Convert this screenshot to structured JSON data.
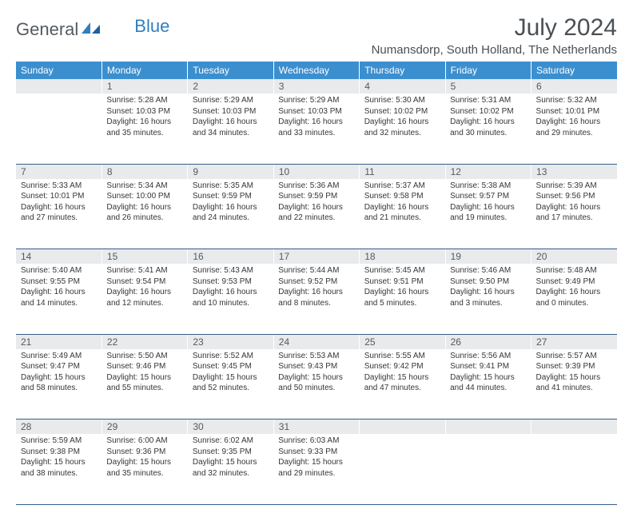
{
  "logo": {
    "general": "General",
    "blue": "Blue"
  },
  "title": "July 2024",
  "location": "Numansdorp, South Holland, The Netherlands",
  "colors": {
    "header_bg": "#3c8fcf",
    "header_fg": "#ffffff",
    "daynum_bg": "#e9eaec",
    "border": "#355e88",
    "title_color": "#4a4f54",
    "body_text": "#363636",
    "logo_gray": "#555a5f",
    "logo_blue": "#2f7fbf"
  },
  "day_headers": [
    "Sunday",
    "Monday",
    "Tuesday",
    "Wednesday",
    "Thursday",
    "Friday",
    "Saturday"
  ],
  "weeks": [
    {
      "nums": [
        "",
        "1",
        "2",
        "3",
        "4",
        "5",
        "6"
      ],
      "cells": [
        {
          "sunrise": "",
          "sunset": "",
          "daylight1": "",
          "daylight2": ""
        },
        {
          "sunrise": "Sunrise: 5:28 AM",
          "sunset": "Sunset: 10:03 PM",
          "daylight1": "Daylight: 16 hours",
          "daylight2": "and 35 minutes."
        },
        {
          "sunrise": "Sunrise: 5:29 AM",
          "sunset": "Sunset: 10:03 PM",
          "daylight1": "Daylight: 16 hours",
          "daylight2": "and 34 minutes."
        },
        {
          "sunrise": "Sunrise: 5:29 AM",
          "sunset": "Sunset: 10:03 PM",
          "daylight1": "Daylight: 16 hours",
          "daylight2": "and 33 minutes."
        },
        {
          "sunrise": "Sunrise: 5:30 AM",
          "sunset": "Sunset: 10:02 PM",
          "daylight1": "Daylight: 16 hours",
          "daylight2": "and 32 minutes."
        },
        {
          "sunrise": "Sunrise: 5:31 AM",
          "sunset": "Sunset: 10:02 PM",
          "daylight1": "Daylight: 16 hours",
          "daylight2": "and 30 minutes."
        },
        {
          "sunrise": "Sunrise: 5:32 AM",
          "sunset": "Sunset: 10:01 PM",
          "daylight1": "Daylight: 16 hours",
          "daylight2": "and 29 minutes."
        }
      ]
    },
    {
      "nums": [
        "7",
        "8",
        "9",
        "10",
        "11",
        "12",
        "13"
      ],
      "cells": [
        {
          "sunrise": "Sunrise: 5:33 AM",
          "sunset": "Sunset: 10:01 PM",
          "daylight1": "Daylight: 16 hours",
          "daylight2": "and 27 minutes."
        },
        {
          "sunrise": "Sunrise: 5:34 AM",
          "sunset": "Sunset: 10:00 PM",
          "daylight1": "Daylight: 16 hours",
          "daylight2": "and 26 minutes."
        },
        {
          "sunrise": "Sunrise: 5:35 AM",
          "sunset": "Sunset: 9:59 PM",
          "daylight1": "Daylight: 16 hours",
          "daylight2": "and 24 minutes."
        },
        {
          "sunrise": "Sunrise: 5:36 AM",
          "sunset": "Sunset: 9:59 PM",
          "daylight1": "Daylight: 16 hours",
          "daylight2": "and 22 minutes."
        },
        {
          "sunrise": "Sunrise: 5:37 AM",
          "sunset": "Sunset: 9:58 PM",
          "daylight1": "Daylight: 16 hours",
          "daylight2": "and 21 minutes."
        },
        {
          "sunrise": "Sunrise: 5:38 AM",
          "sunset": "Sunset: 9:57 PM",
          "daylight1": "Daylight: 16 hours",
          "daylight2": "and 19 minutes."
        },
        {
          "sunrise": "Sunrise: 5:39 AM",
          "sunset": "Sunset: 9:56 PM",
          "daylight1": "Daylight: 16 hours",
          "daylight2": "and 17 minutes."
        }
      ]
    },
    {
      "nums": [
        "14",
        "15",
        "16",
        "17",
        "18",
        "19",
        "20"
      ],
      "cells": [
        {
          "sunrise": "Sunrise: 5:40 AM",
          "sunset": "Sunset: 9:55 PM",
          "daylight1": "Daylight: 16 hours",
          "daylight2": "and 14 minutes."
        },
        {
          "sunrise": "Sunrise: 5:41 AM",
          "sunset": "Sunset: 9:54 PM",
          "daylight1": "Daylight: 16 hours",
          "daylight2": "and 12 minutes."
        },
        {
          "sunrise": "Sunrise: 5:43 AM",
          "sunset": "Sunset: 9:53 PM",
          "daylight1": "Daylight: 16 hours",
          "daylight2": "and 10 minutes."
        },
        {
          "sunrise": "Sunrise: 5:44 AM",
          "sunset": "Sunset: 9:52 PM",
          "daylight1": "Daylight: 16 hours",
          "daylight2": "and 8 minutes."
        },
        {
          "sunrise": "Sunrise: 5:45 AM",
          "sunset": "Sunset: 9:51 PM",
          "daylight1": "Daylight: 16 hours",
          "daylight2": "and 5 minutes."
        },
        {
          "sunrise": "Sunrise: 5:46 AM",
          "sunset": "Sunset: 9:50 PM",
          "daylight1": "Daylight: 16 hours",
          "daylight2": "and 3 minutes."
        },
        {
          "sunrise": "Sunrise: 5:48 AM",
          "sunset": "Sunset: 9:49 PM",
          "daylight1": "Daylight: 16 hours",
          "daylight2": "and 0 minutes."
        }
      ]
    },
    {
      "nums": [
        "21",
        "22",
        "23",
        "24",
        "25",
        "26",
        "27"
      ],
      "cells": [
        {
          "sunrise": "Sunrise: 5:49 AM",
          "sunset": "Sunset: 9:47 PM",
          "daylight1": "Daylight: 15 hours",
          "daylight2": "and 58 minutes."
        },
        {
          "sunrise": "Sunrise: 5:50 AM",
          "sunset": "Sunset: 9:46 PM",
          "daylight1": "Daylight: 15 hours",
          "daylight2": "and 55 minutes."
        },
        {
          "sunrise": "Sunrise: 5:52 AM",
          "sunset": "Sunset: 9:45 PM",
          "daylight1": "Daylight: 15 hours",
          "daylight2": "and 52 minutes."
        },
        {
          "sunrise": "Sunrise: 5:53 AM",
          "sunset": "Sunset: 9:43 PM",
          "daylight1": "Daylight: 15 hours",
          "daylight2": "and 50 minutes."
        },
        {
          "sunrise": "Sunrise: 5:55 AM",
          "sunset": "Sunset: 9:42 PM",
          "daylight1": "Daylight: 15 hours",
          "daylight2": "and 47 minutes."
        },
        {
          "sunrise": "Sunrise: 5:56 AM",
          "sunset": "Sunset: 9:41 PM",
          "daylight1": "Daylight: 15 hours",
          "daylight2": "and 44 minutes."
        },
        {
          "sunrise": "Sunrise: 5:57 AM",
          "sunset": "Sunset: 9:39 PM",
          "daylight1": "Daylight: 15 hours",
          "daylight2": "and 41 minutes."
        }
      ]
    },
    {
      "nums": [
        "28",
        "29",
        "30",
        "31",
        "",
        "",
        ""
      ],
      "cells": [
        {
          "sunrise": "Sunrise: 5:59 AM",
          "sunset": "Sunset: 9:38 PM",
          "daylight1": "Daylight: 15 hours",
          "daylight2": "and 38 minutes."
        },
        {
          "sunrise": "Sunrise: 6:00 AM",
          "sunset": "Sunset: 9:36 PM",
          "daylight1": "Daylight: 15 hours",
          "daylight2": "and 35 minutes."
        },
        {
          "sunrise": "Sunrise: 6:02 AM",
          "sunset": "Sunset: 9:35 PM",
          "daylight1": "Daylight: 15 hours",
          "daylight2": "and 32 minutes."
        },
        {
          "sunrise": "Sunrise: 6:03 AM",
          "sunset": "Sunset: 9:33 PM",
          "daylight1": "Daylight: 15 hours",
          "daylight2": "and 29 minutes."
        },
        {
          "sunrise": "",
          "sunset": "",
          "daylight1": "",
          "daylight2": ""
        },
        {
          "sunrise": "",
          "sunset": "",
          "daylight1": "",
          "daylight2": ""
        },
        {
          "sunrise": "",
          "sunset": "",
          "daylight1": "",
          "daylight2": ""
        }
      ]
    }
  ]
}
